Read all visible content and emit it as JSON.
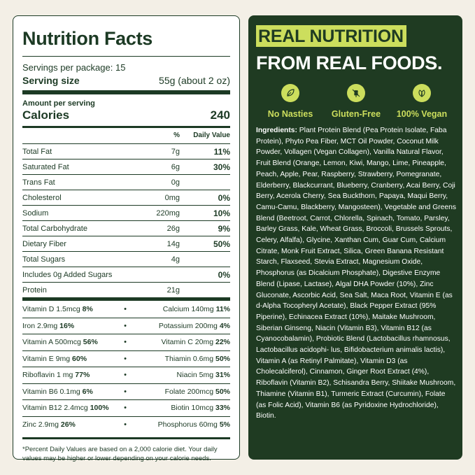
{
  "nutrition_facts": {
    "title": "Nutrition Facts",
    "servings_per_package": "Servings per package: 15",
    "serving_size_label": "Serving size",
    "serving_size_value": "55g (about 2 oz)",
    "amount_per_serving": "Amount per serving",
    "calories_label": "Calories",
    "calories_value": "240",
    "col_percent": "%",
    "col_daily_value": "Daily Value",
    "nutrients": [
      {
        "name": "Total Fat",
        "amount": "7g",
        "dv": "11%"
      },
      {
        "name": "Saturated Fat",
        "amount": "6g",
        "dv": "30%"
      },
      {
        "name": "Trans Fat",
        "amount": "0g",
        "dv": ""
      },
      {
        "name": "Cholesterol",
        "amount": "0mg",
        "dv": "0%"
      },
      {
        "name": "Sodium",
        "amount": "220mg",
        "dv": "10%"
      },
      {
        "name": "Total Carbohydrate",
        "amount": "26g",
        "dv": "9%"
      },
      {
        "name": "Dietary Fiber",
        "amount": "14g",
        "dv": "50%"
      },
      {
        "name": "Total Sugars",
        "amount": "4g",
        "dv": ""
      },
      {
        "name": "Includes 0g Added Sugars",
        "amount": "",
        "dv": "0%"
      },
      {
        "name": "Protein",
        "amount": "21g",
        "dv": ""
      }
    ],
    "vitamins": [
      {
        "left_name": "Vitamin D 1.5mcg",
        "left_dv": "8%",
        "right_name": "Calcium 140mg",
        "right_dv": "11%"
      },
      {
        "left_name": "Iron 2.9mg",
        "left_dv": "16%",
        "right_name": "Potassium 200mg",
        "right_dv": "4%"
      },
      {
        "left_name": "Vitamin A 500mcg",
        "left_dv": "56%",
        "right_name": "Vitamin C 20mg",
        "right_dv": "22%"
      },
      {
        "left_name": "Vitamin E 9mg",
        "left_dv": "60%",
        "right_name": "Thiamin 0.6mg",
        "right_dv": "50%"
      },
      {
        "left_name": "Riboflavin 1 mg",
        "left_dv": "77%",
        "right_name": "Niacin 5mg",
        "right_dv": "31%"
      },
      {
        "left_name": "Vitamin B6 0.1mg",
        "left_dv": "6%",
        "right_name": "Folate 200mcg",
        "right_dv": "50%"
      },
      {
        "left_name": "Vitamin B12 2.4mcg",
        "left_dv": "100%",
        "right_name": "Biotin 10mcg",
        "right_dv": "33%"
      },
      {
        "left_name": "Zinc 2.9mg",
        "left_dv": "26%",
        "right_name": "Phosphorus 60mg",
        "right_dv": "5%"
      }
    ],
    "bullet": "•",
    "footnote": "*Percent Daily Values are based on a 2,000 calorie diet. Your daily values may be higher or lower depending on your calorie needs."
  },
  "promo": {
    "headline_line1": "REAL NUTRITION",
    "headline_line2": "FROM REAL FOODS.",
    "accent_color": "#ccde5d",
    "panel_color": "#1f3b22",
    "badges": [
      {
        "icon": "leaf-icon",
        "label": "No Nasties"
      },
      {
        "icon": "wheat-icon",
        "label": "Gluten-Free"
      },
      {
        "icon": "vegan-leaf-icon",
        "label": "100% Vegan"
      }
    ],
    "ingredients_label": "Ingredients:",
    "ingredients_text": " Plant Protein Blend (Pea Protein Isolate, Faba Protein), Phyto Pea Fiber, MCT Oil Powder, Coconut Milk Powder, Vollagen (Vegan Collagen), Vanilla Natural Flavor, Fruit Blend (Orange, Lemon, Kiwi, Mango, Lime, Pineapple, Peach, Apple, Pear, Raspberry, Strawberry, Pomegranate, Elderberry, Blackcurrant, Blueberry, Cranberry, Acai Berry, Coji Berry, Acerola Cherry, Sea Buckthorn, Papaya, Maqui Berry, Camu-Camu, Blackberry, Mangosteen), Vegetable and Greens Blend (Beetroot, Carrot, Chlorella, Spinach, Tomato, Parsley, Barley Grass, Kale, Wheat Grass, Broccoli, Brussels Sprouts, Celery, Alfalfa), Glycine, Xanthan Cum, Guar Cum, Calcium Citrate, Monk Fruit Extract, Silica, Green Banana Resistant Starch, Flaxseed, Stevia Extract, Magnesium Oxide, Phosphorus (as Dicalcium Phosphate), Digestive Enzyme Blend (Lipase, Lactase), Algal DHA Powder (10%), Zinc Gluconate, Ascorbic Acid, Sea Salt, Maca Root, Vitamin E (as d-Alpha Tocopheryl Acetate), Black Pepper Extract (95% Piperine), Echinacea Extract (10%), Maitake Mushroom, Siberian Ginseng, Niacin (Vitamin B3), Vitamin B12 (as Cyanocobalamin), Probiotic Blend (Lactobacillus rhamnosus, Lactobacillus acidophi- lus, Bifidobacterium animalis lactis), Vitamin A (as Retinyl Palmitate), Vitamin D3 (as Cholecalciferol), Cinnamon, Ginger Root Extract (4%), Riboflavin (Vitamin B2), Schisandra Berry, Shiitake Mushroom, Thiamine (Vitamin B1), Turmeric Extract (Curcumin), Folate (as Folic Acid), Vitamin B6 (as Pyridoxine Hydrochloride), Biotin."
  }
}
